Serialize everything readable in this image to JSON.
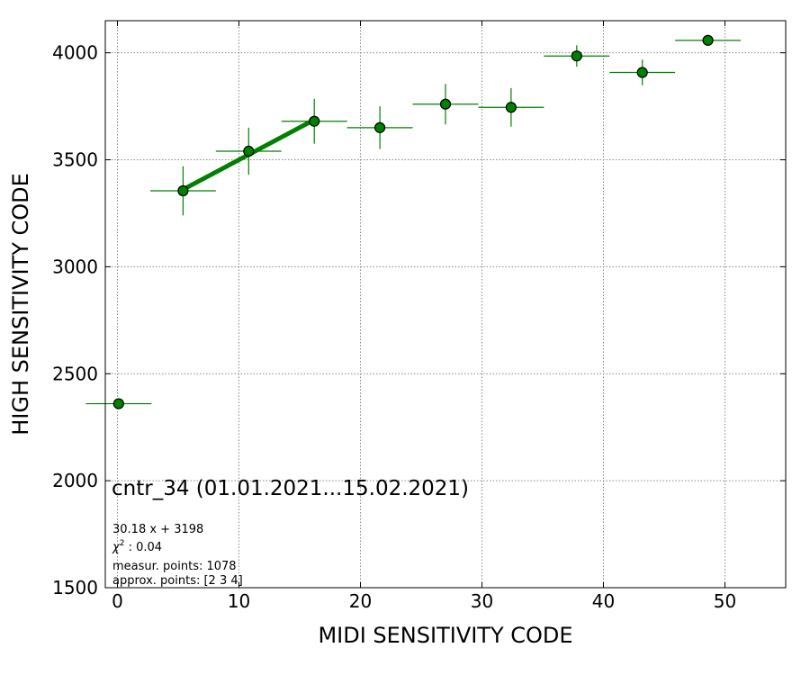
{
  "chart_data": {
    "type": "scatter",
    "title": "cntr_34 (01.01.2021...15.02.2021)",
    "xlabel": "MIDI SENSITIVITY CODE",
    "ylabel": "HIGH SENSITIVITY CODE",
    "xlim": [
      -1,
      55
    ],
    "ylim": [
      1500,
      4150
    ],
    "xticks": [
      0,
      10,
      20,
      30,
      40,
      50
    ],
    "yticks": [
      1500,
      2000,
      2500,
      3000,
      3500,
      4000
    ],
    "grid": true,
    "points": [
      {
        "x": 0.1,
        "y": 2360,
        "xerr": 2.7,
        "yerr": 0
      },
      {
        "x": 5.4,
        "y": 3355,
        "xerr": 2.7,
        "yerr": 115
      },
      {
        "x": 10.8,
        "y": 3540,
        "xerr": 2.7,
        "yerr": 110
      },
      {
        "x": 16.2,
        "y": 3680,
        "xerr": 2.7,
        "yerr": 105
      },
      {
        "x": 21.6,
        "y": 3650,
        "xerr": 2.7,
        "yerr": 100
      },
      {
        "x": 27.0,
        "y": 3760,
        "xerr": 2.7,
        "yerr": 95
      },
      {
        "x": 32.4,
        "y": 3745,
        "xerr": 2.7,
        "yerr": 90
      },
      {
        "x": 37.8,
        "y": 3985,
        "xerr": 2.7,
        "yerr": 50
      },
      {
        "x": 43.2,
        "y": 3908,
        "xerr": 2.7,
        "yerr": 60
      },
      {
        "x": 48.6,
        "y": 4058,
        "xerr": 2.7,
        "yerr": 0
      }
    ],
    "fit": {
      "slope": 30.18,
      "intercept": 3198,
      "x_range": [
        5.4,
        16.2
      ]
    },
    "point_color": "#008000",
    "fit_color": "#008000",
    "annotations": {
      "fit_equation": "30.18 x + 3198",
      "chi2_label": "χ",
      "chi2_sup": "2",
      "chi2_value": " : 0.04",
      "measured": "measur. points: 1078",
      "approx": "approx. points: [2 3 4]"
    }
  }
}
